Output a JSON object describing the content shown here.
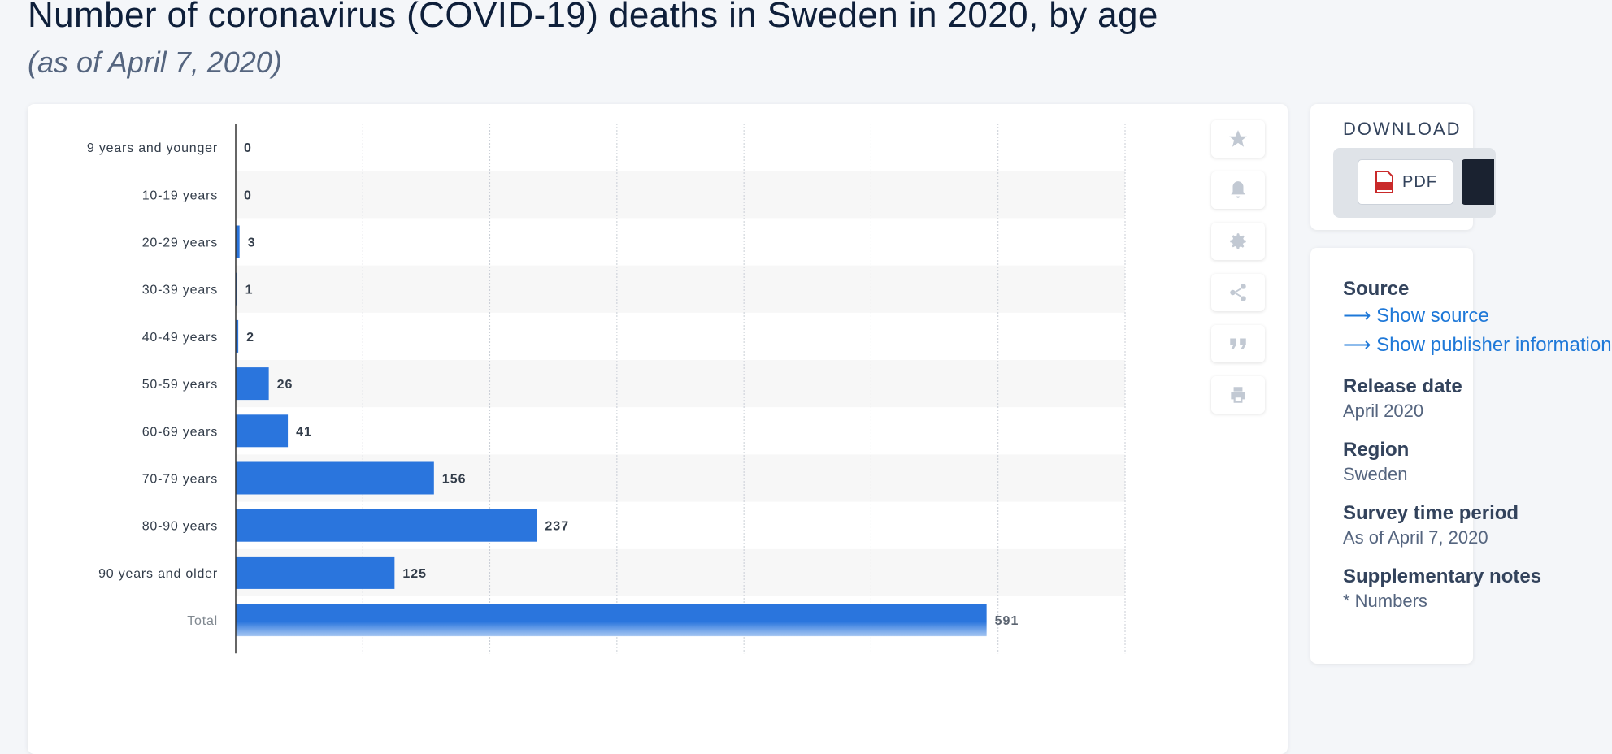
{
  "header": {
    "title": "Number of coronavirus (COVID-19) deaths in Sweden in 2020, by age",
    "subtitle": "(as of April 7, 2020)"
  },
  "colors": {
    "bar": "#2a75dd",
    "band": "#f7f7f7",
    "grid": "#c9ced6",
    "axis": "#333333"
  },
  "chart_data": {
    "type": "bar",
    "orientation": "horizontal",
    "categories": [
      "9 years and younger",
      "10-19 years",
      "20-29 years",
      "30-39 years",
      "40-49 years",
      "50-59 years",
      "60-69 years",
      "70-79 years",
      "80-90 years",
      "90 years and older",
      "Total"
    ],
    "values": [
      0,
      0,
      3,
      1,
      2,
      26,
      41,
      156,
      237,
      125,
      591
    ],
    "xlim": [
      0,
      700
    ],
    "grid_step": 100,
    "title": "Number of coronavirus (COVID-19) deaths in Sweden in 2020, by age",
    "xlabel": "",
    "ylabel": ""
  },
  "toolbar": {
    "items": [
      {
        "name": "star-icon"
      },
      {
        "name": "bell-icon"
      },
      {
        "name": "gear-icon"
      },
      {
        "name": "share-icon"
      },
      {
        "name": "quote-icon"
      },
      {
        "name": "print-icon"
      }
    ]
  },
  "download": {
    "title": "DOWNLOAD",
    "pdf_label": "PDF"
  },
  "info": {
    "source_label": "Source",
    "source_link1": "Show source",
    "source_link2": "Show publisher information",
    "release_label": "Release date",
    "release_value": "April 2020",
    "region_label": "Region",
    "region_value": "Sweden",
    "survey_label": "Survey time period",
    "survey_value": "As of April 7, 2020",
    "supp_label": "Supplementary notes",
    "supp_value": "* Numbers"
  }
}
